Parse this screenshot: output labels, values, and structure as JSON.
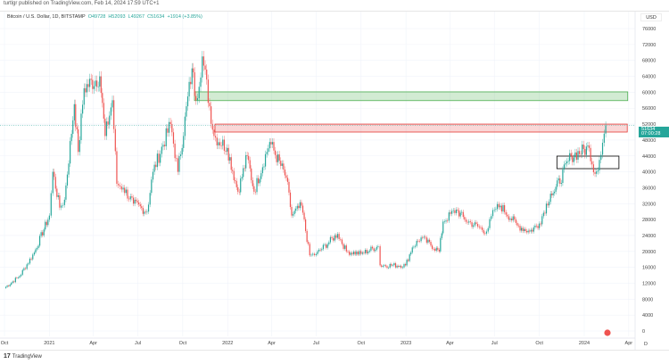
{
  "header": {
    "published": "turtlgr published on TradingView.com, Feb 14, 2024 17:59 UTC+1"
  },
  "legend": {
    "symbol": "Bitcoin / U.S. Dollar, 1D, BITSTAMP",
    "open": "O49728",
    "high": "H52093",
    "low": "L49267",
    "close": "C51634",
    "change": "+1914 (+3.85%)"
  },
  "price_axis": {
    "currency": "USD",
    "last_price": "51634",
    "countdown": "07:00:28",
    "ticks": [
      "76000",
      "72000",
      "68000",
      "64000",
      "60000",
      "56000",
      "52000",
      "48000",
      "44000",
      "40000",
      "36000",
      "32000",
      "28000",
      "24000",
      "20000",
      "16000",
      "12000",
      "8000",
      "4000",
      "0"
    ]
  },
  "time_axis": {
    "ticks": [
      "Oct",
      "2021",
      "Apr",
      "Jul",
      "Oct",
      "2022",
      "Apr",
      "Jul",
      "Oct",
      "2023",
      "Apr",
      "Jul",
      "Oct",
      "2024",
      "Apr"
    ],
    "tick_dates": [
      "2020-10-01",
      "2021-01-01",
      "2021-04-01",
      "2021-07-01",
      "2021-10-01",
      "2022-01-01",
      "2022-04-01",
      "2022-07-01",
      "2022-10-01",
      "2023-01-01",
      "2023-04-01",
      "2023-07-01",
      "2023-10-01",
      "2024-01-01",
      "2024-04-01"
    ],
    "interval": "D"
  },
  "footer": {
    "brand": "TradingView",
    "brand_icon": "tradingview-logo-icon"
  },
  "colors": {
    "up": "#26a69a",
    "down": "#ef5350",
    "green_zone": "#4caf50",
    "red_zone": "#e53935",
    "box": "#000000"
  },
  "chart_data": {
    "type": "line",
    "title": "Bitcoin / U.S. Dollar, 1D, BITSTAMP",
    "ylim": [
      0,
      78000
    ],
    "grid": true,
    "series": [
      {
        "name": "BTCUSD",
        "points": [
          [
            "2020-10-01",
            10800
          ],
          [
            "2020-11-01",
            13800
          ],
          [
            "2020-12-01",
            19700
          ],
          [
            "2021-01-01",
            29000
          ],
          [
            "2021-01-08",
            40000
          ],
          [
            "2021-01-22",
            31000
          ],
          [
            "2021-02-01",
            33000
          ],
          [
            "2021-02-21",
            57000
          ],
          [
            "2021-03-01",
            45000
          ],
          [
            "2021-03-13",
            61000
          ],
          [
            "2021-04-14",
            64000
          ],
          [
            "2021-04-25",
            49000
          ],
          [
            "2021-05-10",
            58000
          ],
          [
            "2021-05-19",
            37000
          ],
          [
            "2021-06-01",
            36000
          ],
          [
            "2021-06-22",
            32000
          ],
          [
            "2021-07-20",
            30000
          ],
          [
            "2021-08-01",
            40000
          ],
          [
            "2021-09-06",
            52000
          ],
          [
            "2021-09-21",
            40000
          ],
          [
            "2021-10-20",
            66000
          ],
          [
            "2021-10-28",
            58000
          ],
          [
            "2021-11-10",
            69000
          ],
          [
            "2021-12-04",
            49000
          ],
          [
            "2021-12-31",
            46000
          ],
          [
            "2022-01-22",
            35000
          ],
          [
            "2022-02-10",
            44000
          ],
          [
            "2022-02-24",
            35000
          ],
          [
            "2022-03-28",
            47500
          ],
          [
            "2022-05-01",
            38500
          ],
          [
            "2022-05-12",
            29000
          ],
          [
            "2022-06-01",
            31500
          ],
          [
            "2022-06-18",
            19000
          ],
          [
            "2022-07-01",
            19300
          ],
          [
            "2022-08-14",
            24400
          ],
          [
            "2022-09-01",
            20000
          ],
          [
            "2022-10-01",
            19400
          ],
          [
            "2022-11-05",
            21300
          ],
          [
            "2022-11-09",
            16500
          ],
          [
            "2022-12-31",
            16500
          ],
          [
            "2023-01-14",
            21000
          ],
          [
            "2023-02-01",
            23500
          ],
          [
            "2023-03-10",
            20000
          ],
          [
            "2023-03-18",
            27500
          ],
          [
            "2023-04-14",
            30500
          ],
          [
            "2023-05-01",
            28000
          ],
          [
            "2023-06-15",
            25000
          ],
          [
            "2023-07-01",
            30500
          ],
          [
            "2023-07-13",
            31500
          ],
          [
            "2023-08-17",
            26500
          ],
          [
            "2023-09-11",
            25000
          ],
          [
            "2023-10-01",
            27000
          ],
          [
            "2023-10-24",
            34500
          ],
          [
            "2023-11-01",
            35000
          ],
          [
            "2023-12-05",
            44000
          ],
          [
            "2024-01-11",
            46000
          ],
          [
            "2024-01-23",
            39500
          ],
          [
            "2024-02-01",
            43000
          ],
          [
            "2024-02-14",
            51634
          ]
        ]
      }
    ],
    "zones": [
      {
        "name": "green-zone",
        "from": "2021-10-25",
        "to": "2024-03-30",
        "low": 57900,
        "high": 60100
      },
      {
        "name": "red-zone",
        "from": "2021-12-06",
        "to": "2024-03-29",
        "low": 50000,
        "high": 52000
      },
      {
        "name": "black-box",
        "from": "2023-11-06",
        "to": "2024-03-12",
        "low": 40800,
        "high": 43950
      }
    ]
  }
}
